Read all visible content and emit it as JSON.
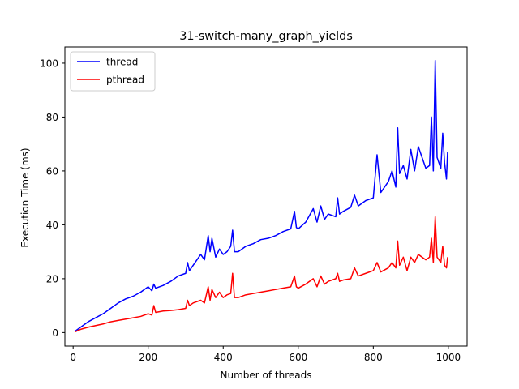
{
  "chart_data": {
    "type": "line",
    "title": "31-switch-many_graph_yields",
    "xlabel": "Number of threads",
    "ylabel": "Execution Time (ms)",
    "xlim": [
      -22,
      1050
    ],
    "ylim": [
      -5,
      106
    ],
    "xticks": [
      0,
      200,
      400,
      600,
      800,
      1000
    ],
    "yticks": [
      0,
      20,
      40,
      60,
      80,
      100
    ],
    "grid": false,
    "legend_position": "top-left",
    "series": [
      {
        "name": "thread",
        "color": "#0000ff",
        "x": [
          5,
          20,
          40,
          60,
          80,
          100,
          120,
          140,
          160,
          180,
          200,
          210,
          215,
          220,
          240,
          260,
          280,
          300,
          305,
          310,
          320,
          340,
          350,
          360,
          365,
          370,
          380,
          390,
          400,
          410,
          420,
          425,
          430,
          440,
          460,
          480,
          500,
          520,
          540,
          560,
          580,
          590,
          595,
          600,
          620,
          640,
          650,
          660,
          670,
          680,
          700,
          705,
          710,
          720,
          740,
          750,
          760,
          780,
          800,
          810,
          820,
          840,
          850,
          860,
          865,
          870,
          880,
          890,
          900,
          910,
          920,
          940,
          950,
          955,
          960,
          965,
          970,
          980,
          985,
          990,
          995,
          998
        ],
        "y": [
          0.5,
          2,
          4,
          5.5,
          7,
          9,
          11,
          12.5,
          13.5,
          15,
          17,
          15.5,
          18,
          16.5,
          17.5,
          19,
          21,
          22,
          26,
          23,
          25,
          29,
          27,
          36,
          30,
          35,
          28,
          31,
          29,
          30,
          32,
          38,
          30,
          30,
          32,
          33,
          34.5,
          35,
          36,
          37.5,
          38.5,
          45,
          39,
          38.5,
          41,
          46,
          41,
          47,
          42,
          44,
          43,
          50,
          44,
          45,
          46.5,
          51,
          47,
          49,
          50,
          66,
          52,
          56,
          60,
          54,
          76,
          59,
          62,
          57,
          68,
          60,
          69,
          61,
          62,
          80,
          60,
          101,
          65,
          61,
          74,
          63,
          57,
          67
        ]
      },
      {
        "name": "pthread",
        "color": "#ff0000",
        "x": [
          5,
          20,
          40,
          60,
          80,
          100,
          120,
          140,
          160,
          180,
          200,
          210,
          215,
          220,
          240,
          260,
          280,
          300,
          305,
          310,
          320,
          340,
          350,
          360,
          365,
          370,
          380,
          390,
          400,
          410,
          420,
          425,
          430,
          440,
          460,
          480,
          500,
          520,
          540,
          560,
          580,
          590,
          595,
          600,
          620,
          640,
          650,
          660,
          670,
          680,
          700,
          705,
          710,
          720,
          740,
          750,
          760,
          780,
          800,
          810,
          820,
          840,
          850,
          860,
          865,
          870,
          880,
          890,
          900,
          910,
          920,
          940,
          950,
          955,
          960,
          965,
          970,
          980,
          985,
          990,
          995,
          998
        ],
        "y": [
          0.3,
          1.2,
          2,
          2.6,
          3.2,
          4,
          4.5,
          5,
          5.5,
          6,
          7,
          6.5,
          10,
          7.5,
          8,
          8.2,
          8.5,
          9,
          12,
          10,
          11,
          12,
          11,
          17,
          12,
          16,
          13,
          15,
          13,
          14,
          14.5,
          22,
          13,
          13,
          14,
          14.5,
          15,
          15.5,
          16,
          16.5,
          17,
          21,
          17,
          16.5,
          18,
          20,
          17,
          21,
          18,
          19,
          20,
          22,
          19,
          19.5,
          20,
          24,
          21,
          22,
          23,
          26,
          22.5,
          24,
          26,
          24,
          34,
          25,
          28,
          23,
          28,
          26,
          29,
          27,
          28,
          35,
          26,
          43,
          28,
          26,
          32,
          25,
          24,
          28
        ]
      }
    ]
  }
}
